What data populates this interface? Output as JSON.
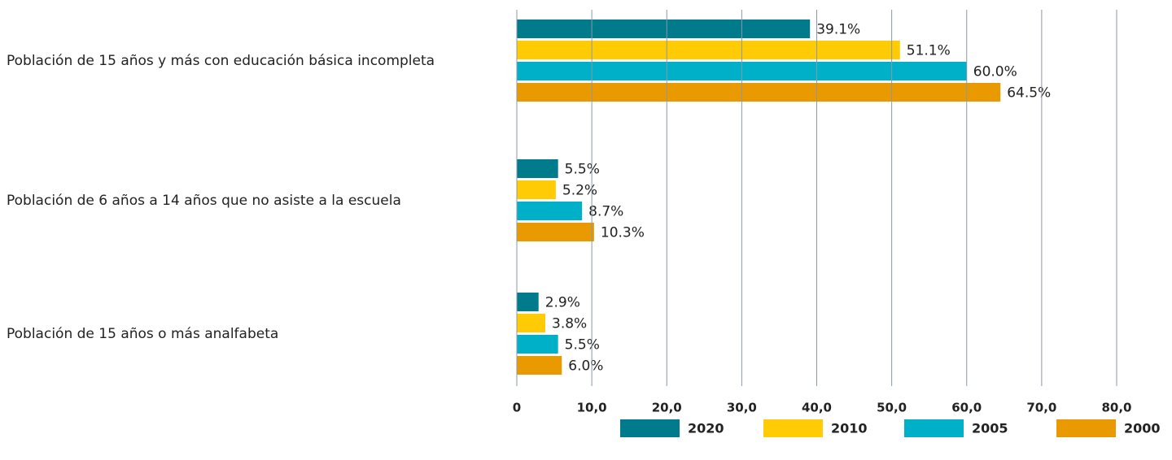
{
  "chart_data": {
    "type": "bar",
    "orientation": "horizontal",
    "categories": [
      "Población de 15 años y más con educación básica incompleta",
      "Población de 6 años a 14 años que no asiste a la escuela",
      "Población de 15 años o más analfabeta"
    ],
    "series": [
      {
        "name": "2020",
        "color": "#007b8c",
        "values": [
          39.1,
          5.5,
          2.9
        ],
        "value_labels": [
          "39.1%",
          "5.5%",
          "2.9%"
        ]
      },
      {
        "name": "2010",
        "color": "#ffcb05",
        "values": [
          51.1,
          5.2,
          3.8
        ],
        "value_labels": [
          "51.1%",
          "5.2%",
          "3.8%"
        ]
      },
      {
        "name": "2005",
        "color": "#00afc8",
        "values": [
          60.0,
          8.7,
          5.5
        ],
        "value_labels": [
          "60.0%",
          "8.7%",
          "5.5%"
        ]
      },
      {
        "name": "2000",
        "color": "#e99a00",
        "values": [
          64.5,
          10.3,
          6.0
        ],
        "value_labels": [
          "64.5%",
          "10.3%",
          "6.0%"
        ]
      }
    ],
    "xlim": [
      0,
      80
    ],
    "xticks": [
      0,
      {
        "value": 10,
        "label": "10,0"
      },
      {
        "value": 20,
        "label": "20,0"
      },
      {
        "value": 30,
        "label": "30,0"
      },
      {
        "value": 40,
        "label": "40,0"
      },
      {
        "value": 50,
        "label": "50,0"
      },
      {
        "value": 60,
        "label": "60,0"
      },
      {
        "value": 70,
        "label": "70,0"
      },
      {
        "value": 80,
        "label": "80,0"
      }
    ],
    "grid": true,
    "legend": "bottom"
  }
}
